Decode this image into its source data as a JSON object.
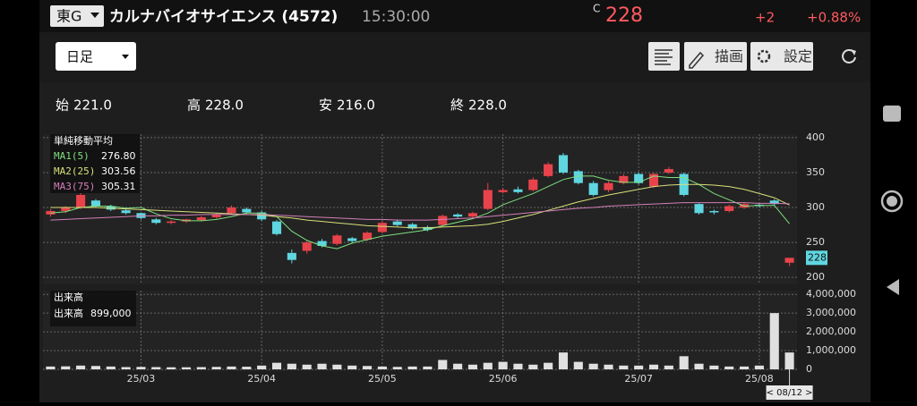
{
  "header": {
    "market": "東G",
    "name": "カルナバイオサイエンス (4572)",
    "time": "15:30:00",
    "price_flag": "C",
    "price": 228,
    "change": "+2",
    "change_pct": "+0.88%"
  },
  "toolbar": {
    "period": "日足",
    "draw": "描画",
    "settings": "設定"
  },
  "ohlc": [
    {
      "label": "始",
      "value": "221.0"
    },
    {
      "label": "高",
      "value": "228.0"
    },
    {
      "label": "安",
      "value": "216.0"
    },
    {
      "label": "終",
      "value": "228.0"
    }
  ],
  "chart_data": {
    "type": "candlestick",
    "ma_title": "単純移動平均",
    "categories": [
      null,
      null,
      null,
      null,
      null,
      null,
      "25/03",
      null,
      null,
      null,
      null,
      null,
      null,
      null,
      "25/04",
      null,
      null,
      null,
      null,
      null,
      null,
      null,
      "25/05",
      null,
      null,
      null,
      null,
      null,
      null,
      null,
      "25/06",
      null,
      null,
      null,
      null,
      null,
      null,
      null,
      null,
      "25/07",
      null,
      null,
      null,
      null,
      null,
      null,
      null,
      "25/08",
      null,
      null
    ],
    "cursor_label": "< 08/12 >",
    "open": [
      290,
      295,
      300,
      310,
      302,
      296,
      292,
      283,
      278,
      280,
      282,
      286,
      292,
      298,
      293,
      280,
      235,
      238,
      252,
      248,
      256,
      254,
      265,
      280,
      276,
      272,
      275,
      290,
      287,
      298,
      322,
      326,
      325,
      345,
      375,
      352,
      335,
      325,
      335,
      348,
      330,
      350,
      348,
      305,
      295,
      295,
      300,
      304,
      310,
      221
    ],
    "high": [
      298,
      302,
      322,
      312,
      304,
      298,
      293,
      285,
      282,
      284,
      288,
      292,
      303,
      300,
      295,
      282,
      240,
      252,
      255,
      262,
      258,
      266,
      280,
      283,
      278,
      274,
      290,
      292,
      294,
      335,
      328,
      330,
      343,
      365,
      378,
      354,
      338,
      338,
      348,
      350,
      350,
      358,
      350,
      306,
      297,
      304,
      307,
      306,
      312,
      228
    ],
    "low": [
      287,
      292,
      298,
      300,
      295,
      290,
      283,
      276,
      276,
      278,
      280,
      284,
      290,
      291,
      281,
      260,
      220,
      234,
      243,
      246,
      250,
      252,
      263,
      273,
      268,
      266,
      273,
      285,
      285,
      296,
      320,
      320,
      323,
      343,
      348,
      333,
      316,
      322,
      333,
      333,
      328,
      348,
      316,
      290,
      290,
      293,
      298,
      300,
      303,
      216
    ],
    "close": [
      295,
      300,
      318,
      302,
      297,
      292,
      285,
      278,
      280,
      283,
      286,
      290,
      300,
      293,
      283,
      262,
      225,
      250,
      245,
      260,
      252,
      264,
      278,
      275,
      270,
      268,
      288,
      287,
      292,
      325,
      325,
      322,
      340,
      362,
      350,
      335,
      318,
      335,
      345,
      335,
      348,
      355,
      318,
      292,
      293,
      302,
      305,
      302,
      305,
      228
    ],
    "ma": [
      {
        "name": "MA1(5)",
        "color": "#7ee07e",
        "last_label": "276.80",
        "values": [
          292,
          294,
          300,
          302,
          302,
          299,
          300,
          291,
          284,
          281,
          281,
          283,
          287,
          292,
          292,
          287,
          266,
          253,
          245,
          241,
          249,
          254,
          259,
          262,
          265,
          268,
          274,
          279,
          284,
          292,
          304,
          312,
          320,
          330,
          340,
          345,
          345,
          339,
          336,
          336,
          345,
          343,
          343,
          333,
          320,
          311,
          302,
          303,
          303,
          276.8
        ]
      },
      {
        "name": "MA2(25)",
        "color": "#d8e07a",
        "last_label": "303.56",
        "values": [
          300,
          300,
          300,
          300,
          299,
          298,
          297,
          296,
          295,
          294,
          293,
          292,
          291,
          290,
          289,
          287,
          285,
          282,
          280,
          278,
          276,
          274,
          273,
          272,
          271,
          271,
          272,
          273,
          274,
          276,
          280,
          285,
          290,
          296,
          302,
          308,
          313,
          318,
          322,
          326,
          330,
          332,
          333,
          333,
          332,
          330,
          326,
          320,
          314,
          303.56
        ]
      },
      {
        "name": "MA3(75)",
        "color": "#d47fb8",
        "last_label": "305.31",
        "values": [
          282,
          283,
          284,
          285,
          286,
          287,
          288,
          288,
          289,
          289,
          290,
          290,
          290,
          290,
          290,
          289,
          288,
          287,
          286,
          285,
          284,
          283,
          283,
          282,
          282,
          282,
          283,
          284,
          285,
          287,
          289,
          291,
          293,
          295,
          297,
          299,
          300,
          302,
          303,
          304,
          305,
          306,
          307,
          307,
          307,
          307,
          307,
          306,
          306,
          305.31
        ]
      }
    ],
    "up_color": "#e8434b",
    "down_color": "#5fd6e0",
    "ylim": [
      190,
      405
    ],
    "yticks": [
      200,
      250,
      300,
      350,
      400
    ],
    "volume_title": "出来高",
    "volume_label": "出来高",
    "volume_last_label": "899,000",
    "volume": [
      150000,
      160000,
      200000,
      180000,
      150000,
      120000,
      130000,
      120000,
      110000,
      110000,
      120000,
      130000,
      150000,
      140000,
      200000,
      350000,
      300000,
      250000,
      300000,
      250000,
      200000,
      180000,
      150000,
      130000,
      150000,
      150000,
      500000,
      300000,
      250000,
      350000,
      400000,
      300000,
      250000,
      350000,
      900000,
      400000,
      300000,
      250000,
      200000,
      200000,
      250000,
      200000,
      700000,
      300000,
      200000,
      150000,
      150000,
      200000,
      3000000,
      899000
    ],
    "volume_color": "#e0e0e0",
    "vlim": [
      0,
      4200000
    ],
    "vticks": [
      0,
      {
        "value": 1000000,
        "label": "1,000,000"
      },
      {
        "value": 2000000,
        "label": "2,000,000"
      },
      {
        "value": 3000000,
        "label": "3,000,000"
      },
      {
        "value": 4000000,
        "label": "4,000,000"
      }
    ],
    "grid": true
  }
}
